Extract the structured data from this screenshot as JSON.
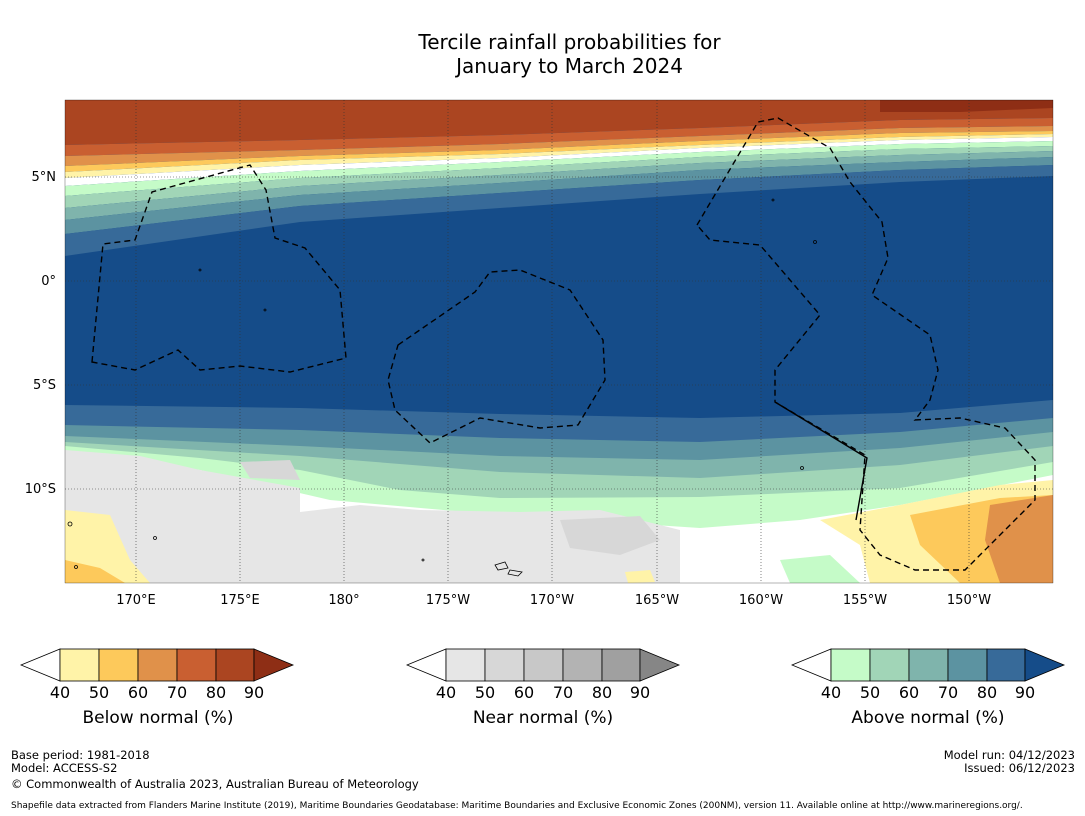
{
  "title_line1": "Tercile rainfall probabilities for",
  "title_line2": "January to March 2024",
  "map": {
    "lon_labels": [
      "170°E",
      "175°E",
      "180°",
      "175°W",
      "170°W",
      "165°W",
      "160°W",
      "155°W",
      "150°W"
    ],
    "lat_labels": [
      "5°N",
      "0°",
      "5°S",
      "10°S"
    ],
    "colors": {
      "below": [
        "#fff3a8",
        "#fdc95b",
        "#e0914a",
        "#c95f31",
        "#ab4521",
        "#8e2e15"
      ],
      "near": [
        "#e6e6e6",
        "#d7d7d7",
        "#c8c8c8",
        "#b3b3b3",
        "#a0a0a0",
        "#868686"
      ],
      "above": [
        "#c5fbc8",
        "#a1d5b7",
        "#7fb4ac",
        "#5c93a1",
        "#376a99",
        "#154c89"
      ]
    }
  },
  "colorbars": [
    {
      "title": "Below normal (%)",
      "ticks": [
        "40",
        "50",
        "60",
        "70",
        "80",
        "90"
      ]
    },
    {
      "title": "Near normal (%)",
      "ticks": [
        "40",
        "50",
        "60",
        "70",
        "80",
        "90"
      ]
    },
    {
      "title": "Above normal (%)",
      "ticks": [
        "40",
        "50",
        "60",
        "70",
        "80",
        "90"
      ]
    }
  ],
  "footer": {
    "base_period": "Base period: 1981-2018",
    "model": "Model: ACCESS-S2",
    "copyright": "© Commonwealth of Australia 2023, Australian Bureau of Meteorology",
    "model_run": "Model run: 04/12/2023",
    "issued": "Issued: 06/12/2023",
    "shapefile": "Shapefile data extracted from Flanders Marine Institute (2019), Maritime Boundaries Geodatabase: Maritime Boundaries and Exclusive Economic Zones (200NM), version 11. Available online at http://www.marineregions.org/."
  }
}
